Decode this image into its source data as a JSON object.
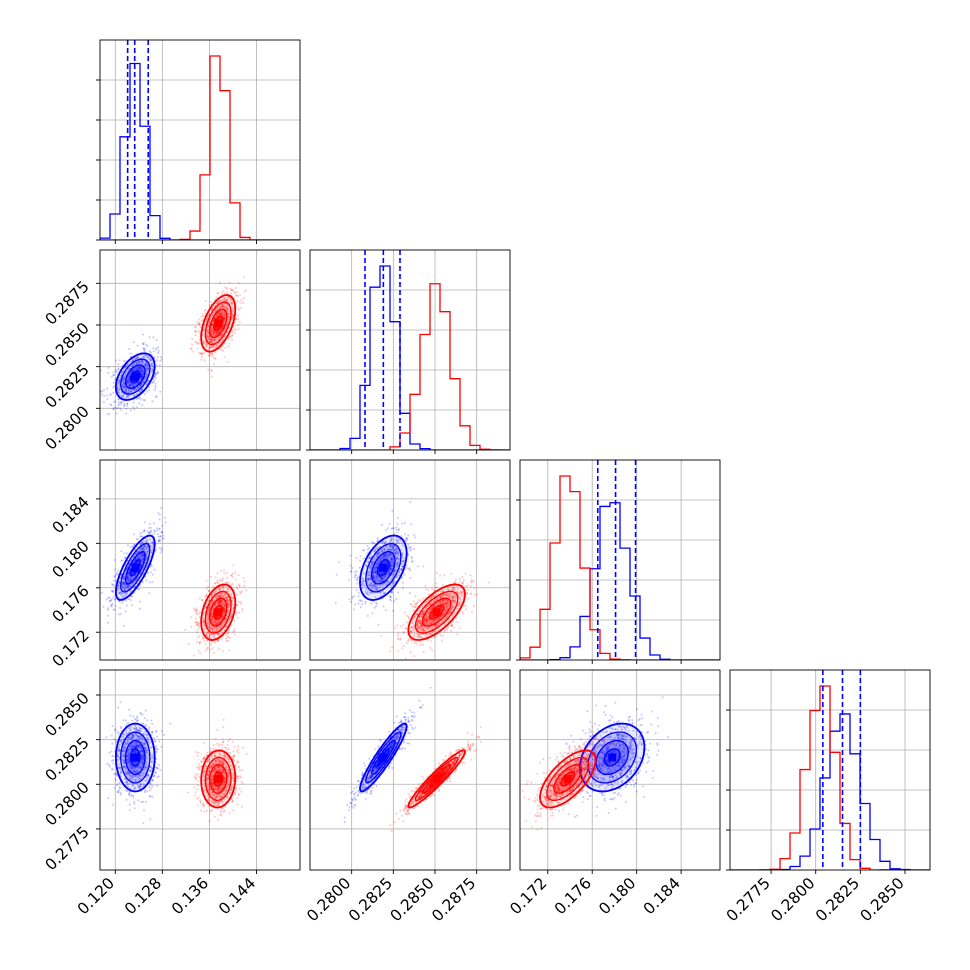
{
  "chart_data": {
    "type": "corner",
    "title": "",
    "parameters": 4,
    "grid": true,
    "colors": {
      "blue": "#0000ff",
      "red": "#ff0000"
    },
    "axis_ranges": [
      [
        0.1174,
        0.1514
      ],
      [
        0.2775,
        0.2895
      ],
      [
        0.1695,
        0.1875
      ],
      [
        0.2752,
        0.2864
      ]
    ],
    "tick_labels": [
      [
        "0.120",
        "0.128",
        "0.136",
        "0.144"
      ],
      [
        "0.2800",
        "0.2825",
        "0.2850",
        "0.2875"
      ],
      [
        "0.172",
        "0.176",
        "0.180",
        "0.184"
      ],
      [
        "0.2775",
        "0.2800",
        "0.2825",
        "0.2850"
      ]
    ],
    "tick_values": [
      [
        0.12,
        0.128,
        0.136,
        0.144
      ],
      [
        0.28,
        0.2825,
        0.285,
        0.2875
      ],
      [
        0.172,
        0.176,
        0.18,
        0.184
      ],
      [
        0.2775,
        0.28,
        0.2825,
        0.285
      ]
    ],
    "series": [
      {
        "color": "#0000ff",
        "means": [
          0.1234,
          0.2819,
          0.1778,
          0.2815
        ],
        "stds": [
          0.00165,
          0.0007,
          0.00145,
          0.00095
        ],
        "corr": {
          "0-1": 0.45,
          "0-2": 0.75,
          "0-3": 0.0,
          "1-2": 0.45,
          "1-3": 0.92,
          "2-3": 0.3
        },
        "quantile_lines": [
          [
            0.1221,
            0.1233,
            0.1256
          ],
          [
            0.2808,
            0.2819,
            0.2829
          ],
          [
            0.1765,
            0.1781,
            0.1799
          ],
          [
            0.2804,
            0.2815,
            0.2825
          ]
        ]
      },
      {
        "color": "#ff0000",
        "means": [
          0.1375,
          0.2851,
          0.1738,
          0.2803
        ],
        "stds": [
          0.00145,
          0.00085,
          0.00125,
          0.0008
        ],
        "corr": {
          "0-1": 0.5,
          "0-2": 0.35,
          "0-3": 0.05,
          "1-2": 0.65,
          "1-3": 0.95,
          "2-3": 0.65
        },
        "quantile_lines": []
      }
    ]
  }
}
